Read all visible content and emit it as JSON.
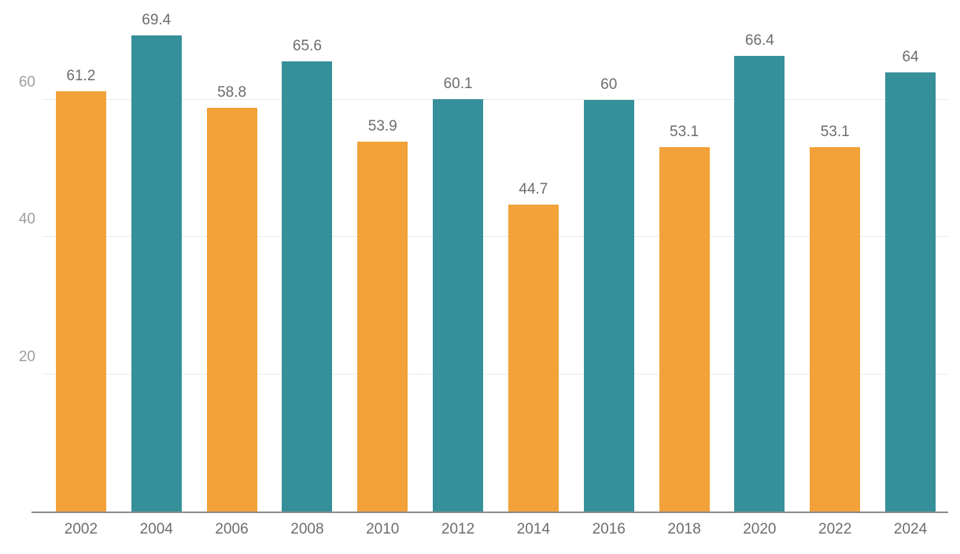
{
  "chart_data": {
    "type": "bar",
    "title": "",
    "xlabel": "",
    "ylabel": "",
    "categories": [
      "2002",
      "2004",
      "2006",
      "2008",
      "2010",
      "2012",
      "2014",
      "2016",
      "2018",
      "2020",
      "2022",
      "2024"
    ],
    "values": [
      61.2,
      69.4,
      58.8,
      65.6,
      53.9,
      60.1,
      44.7,
      60,
      53.1,
      66.4,
      53.1,
      64
    ],
    "value_labels": [
      "61.2",
      "69.4",
      "58.8",
      "65.6",
      "53.9",
      "60.1",
      "44.7",
      "60",
      "53.1",
      "66.4",
      "53.1",
      "64"
    ],
    "ylim": [
      0,
      73.4
    ],
    "yticks": [
      20,
      40,
      60
    ],
    "grid": true,
    "legend_position": "none",
    "colors": {
      "odd_bars": "#F2A239",
      "even_bars": "#36909A",
      "value_label": "#6d6d6d",
      "axis_tick_label": "#9e9e9e",
      "x_tick_label": "#6d6d6d",
      "gridline": "#ebebeb",
      "axis_line": "#8c8c8c",
      "background": "#ffffff"
    }
  }
}
